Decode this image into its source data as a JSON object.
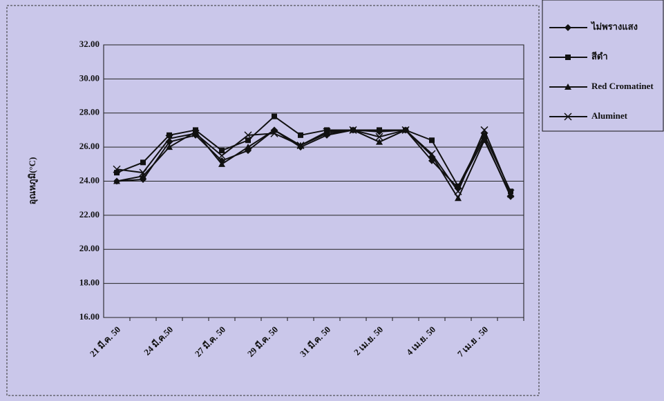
{
  "chart_data": {
    "type": "line",
    "y_label": "อุณหภูมิ(°C)",
    "categories": [
      "21 มี.ค. 50",
      null,
      "24 มี.ค.50",
      null,
      "27 มี.ค. 50",
      null,
      "29 มี.ค. 50",
      null,
      "31 มี.ค. 50",
      null,
      "2 เม.ย. 50",
      null,
      "4 เม.ย. 50",
      null,
      "7 เม.ย . 50",
      null
    ],
    "series": [
      {
        "name": "ไม่พรางแสง",
        "color": "#111111",
        "marker": "diamond",
        "values": [
          24.0,
          24.1,
          26.3,
          26.7,
          25.2,
          25.8,
          27.0,
          26.0,
          26.7,
          27.0,
          26.9,
          27.0,
          25.2,
          23.6,
          26.5,
          23.1
        ]
      },
      {
        "name": "สีดำ",
        "color": "#111111",
        "marker": "square",
        "values": [
          24.5,
          25.1,
          26.7,
          27.0,
          25.8,
          26.4,
          27.8,
          26.7,
          27.0,
          27.0,
          27.0,
          27.0,
          26.4,
          23.7,
          26.7,
          23.4
        ]
      },
      {
        "name": "Red Cromatinet",
        "color": "#111111",
        "marker": "triangle",
        "values": [
          24.0,
          24.3,
          26.0,
          26.9,
          25.0,
          26.0,
          27.0,
          26.1,
          26.8,
          27.0,
          26.3,
          27.0,
          25.5,
          23.0,
          26.4,
          23.2
        ]
      },
      {
        "name": "Aluminet",
        "color": "#111111",
        "marker": "x",
        "values": [
          24.7,
          24.5,
          26.5,
          26.8,
          25.5,
          26.7,
          26.8,
          26.1,
          26.9,
          27.0,
          26.6,
          27.0,
          25.6,
          23.4,
          27.0,
          23.3
        ]
      }
    ],
    "ylim": [
      16,
      32
    ],
    "yticks": [
      {
        "value": 16,
        "label": "16.00"
      },
      {
        "value": 18,
        "label": "18.00"
      },
      {
        "value": 20,
        "label": "20.00"
      },
      {
        "value": 22,
        "label": "22.00"
      },
      {
        "value": 24,
        "label": "24.00"
      },
      {
        "value": 26,
        "label": "26.00"
      },
      {
        "value": 28,
        "label": "28.00"
      },
      {
        "value": 30,
        "label": "30.00"
      },
      {
        "value": 32,
        "label": "32.00"
      }
    ],
    "grid": true,
    "legend": "top-right"
  }
}
